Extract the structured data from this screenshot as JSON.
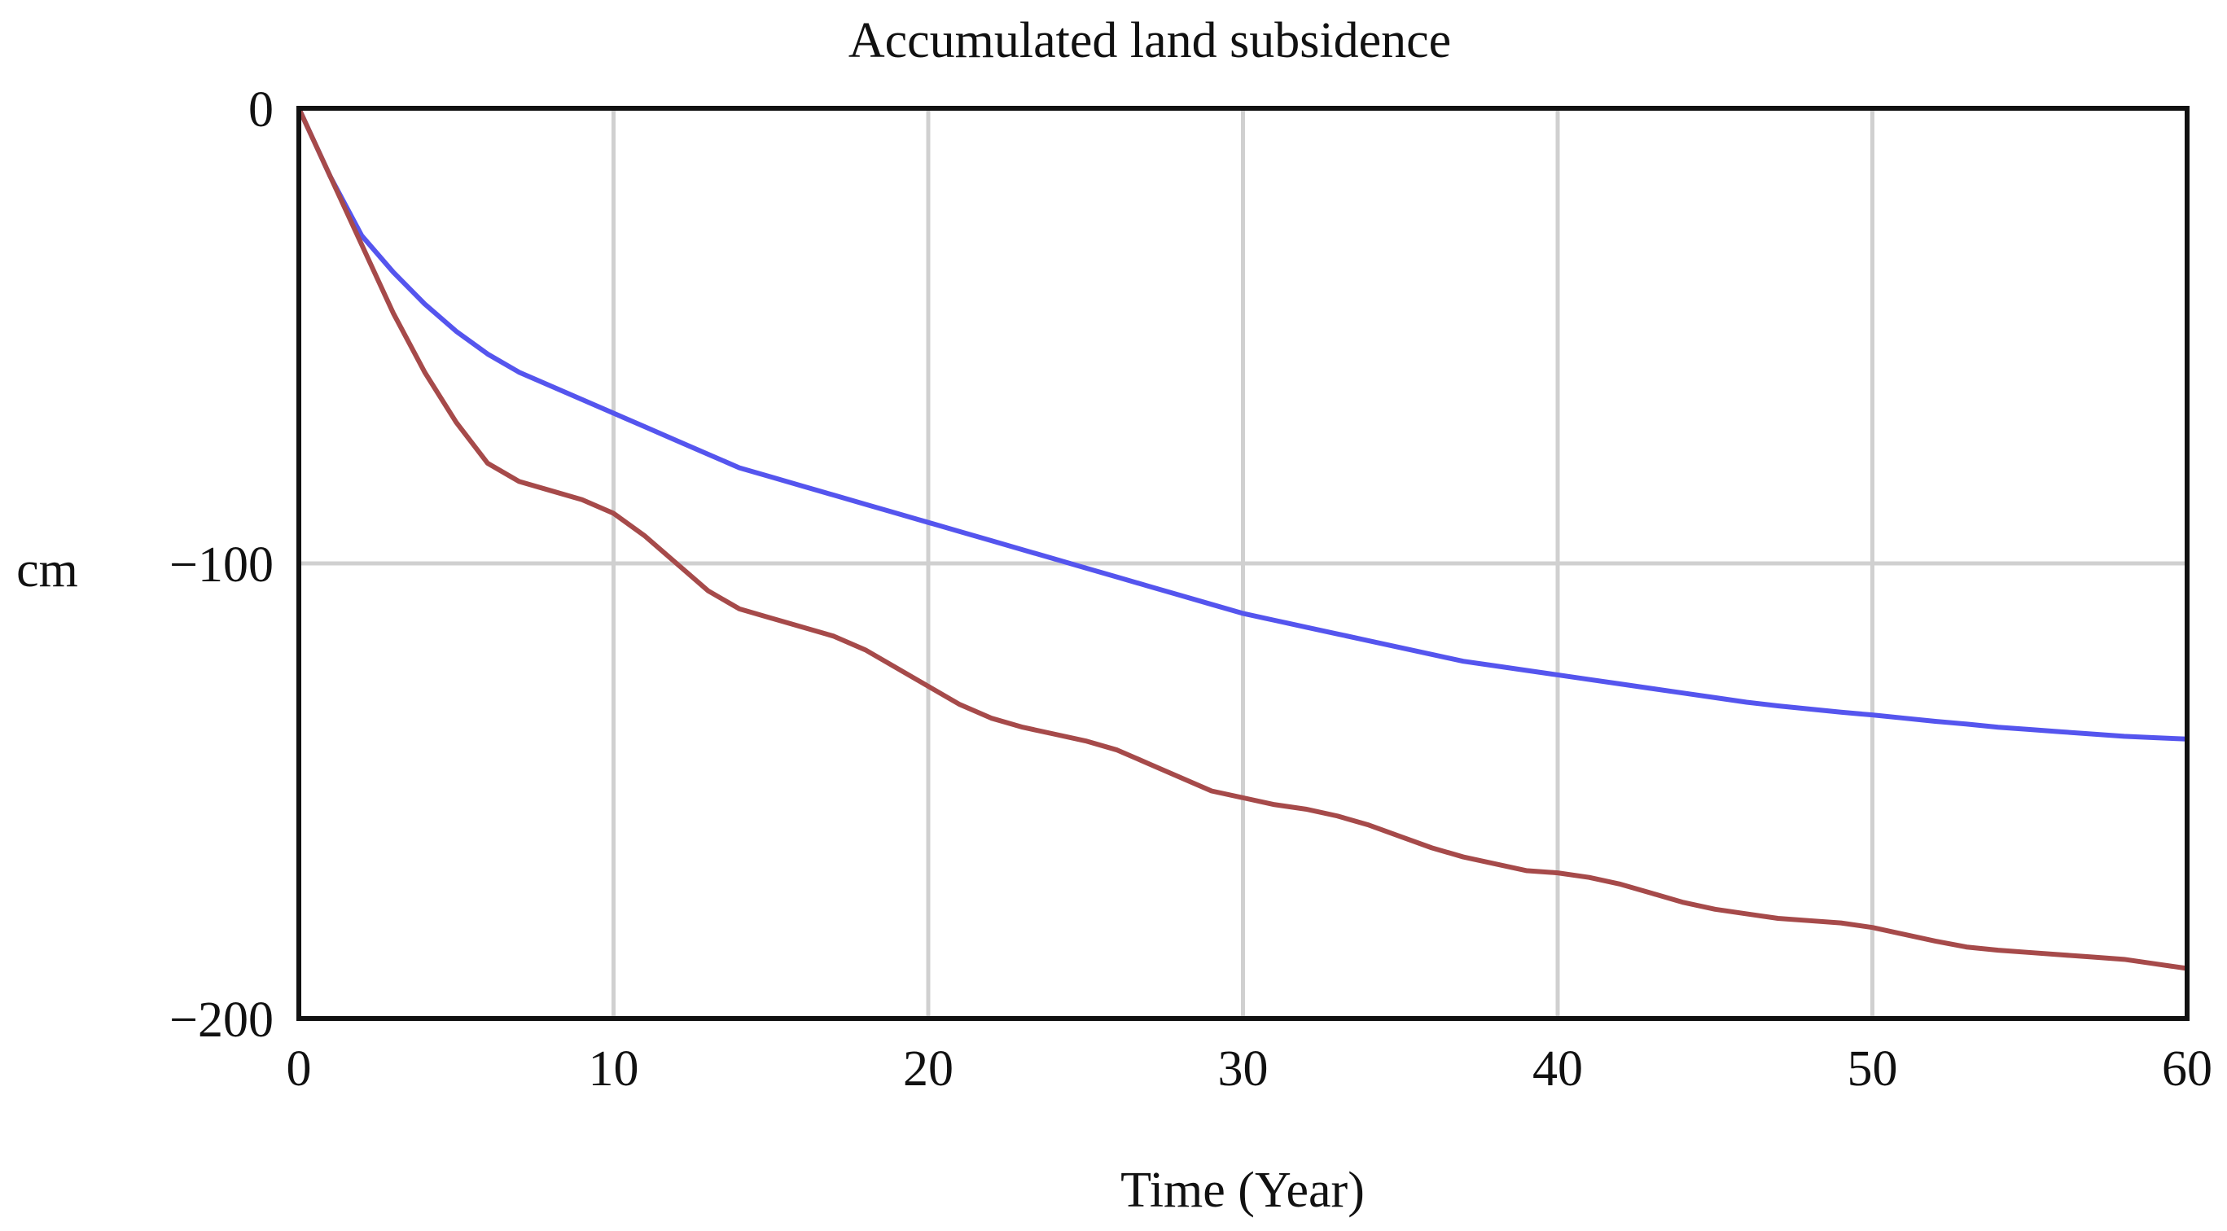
{
  "chart_data": {
    "type": "line",
    "title": "Accumulated land subsidence",
    "xlabel": "Time (Year)",
    "ylabel": "cm",
    "xlim": [
      0,
      60
    ],
    "ylim": [
      -200,
      0
    ],
    "x_ticks": [
      0,
      10,
      20,
      30,
      40,
      50,
      60
    ],
    "y_ticks": [
      0,
      -100,
      -200
    ],
    "x_tick_labels": [
      "0",
      "10",
      "20",
      "30",
      "40",
      "50",
      "60"
    ],
    "y_tick_labels": [
      "0",
      "−100",
      "−200"
    ],
    "grid": true,
    "x": [
      0,
      1,
      2,
      3,
      4,
      5,
      6,
      7,
      8,
      9,
      10,
      11,
      12,
      13,
      14,
      15,
      16,
      17,
      18,
      19,
      20,
      21,
      22,
      23,
      24,
      25,
      26,
      27,
      28,
      29,
      30,
      31,
      32,
      33,
      34,
      35,
      36,
      37,
      38,
      39,
      40,
      41,
      42,
      43,
      44,
      45,
      46,
      47,
      48,
      49,
      50,
      51,
      52,
      53,
      54,
      55,
      56,
      57,
      58,
      59,
      60
    ],
    "series": [
      {
        "name": "blue series",
        "color": "#5555ee",
        "values": [
          0,
          -15,
          -28,
          -36,
          -43,
          -49,
          -54,
          -58,
          -61,
          -64,
          -67,
          -70,
          -73,
          -76,
          -79,
          -81,
          -83,
          -85,
          -87,
          -89,
          -91,
          -93,
          -95,
          -97,
          -99,
          -101,
          -103,
          -105,
          -107,
          -109,
          -111,
          -112.5,
          -114,
          -115.5,
          -117,
          -118.5,
          -120,
          -121.5,
          -122.5,
          -123.5,
          -124.5,
          -125.5,
          -126.5,
          -127.5,
          -128.5,
          -129.5,
          -130.5,
          -131.3,
          -132,
          -132.7,
          -133.3,
          -134,
          -134.7,
          -135.3,
          -136,
          -136.5,
          -137,
          -137.5,
          -138,
          -138.3,
          -138.6
        ]
      },
      {
        "name": "red series",
        "color": "#a64a4a",
        "values": [
          0,
          -15,
          -30,
          -45,
          -58,
          -69,
          -78,
          -82,
          -84,
          -86,
          -89,
          -94,
          -100,
          -106,
          -110,
          -112,
          -114,
          -116,
          -119,
          -123,
          -127,
          -131,
          -134,
          -136,
          -137.5,
          -139,
          -141,
          -144,
          -147,
          -150,
          -151.5,
          -153,
          -154,
          -155.5,
          -157.5,
          -160,
          -162.5,
          -164.5,
          -166,
          -167.5,
          -168,
          -169,
          -170.5,
          -172.5,
          -174.5,
          -176,
          -177,
          -178,
          -178.5,
          -179,
          -180,
          -181.5,
          -183,
          -184.3,
          -185,
          -185.5,
          -186,
          -186.5,
          -187,
          -188,
          -189
        ]
      }
    ]
  }
}
